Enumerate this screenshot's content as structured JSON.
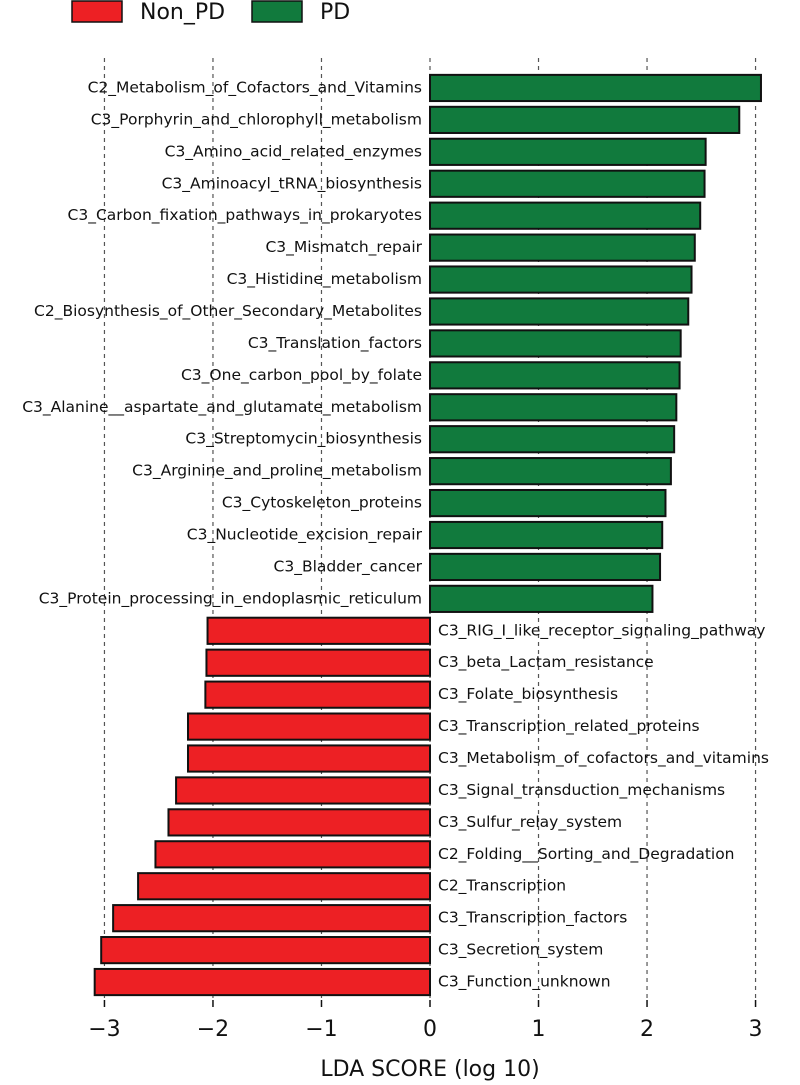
{
  "chart_data": {
    "type": "bar",
    "orientation": "horizontal",
    "categories": [
      "C2_Metabolism_of_Cofactors_and_Vitamins",
      "C3_Porphyrin_and_chlorophyll_metabolism",
      "C3_Amino_acid_related_enzymes",
      "C3_Aminoacyl_tRNA_biosynthesis",
      "C3_Carbon_fixation_pathways_in_prokaryotes",
      "C3_Mismatch_repair",
      "C3_Histidine_metabolism",
      "C2_Biosynthesis_of_Other_Secondary_Metabolites",
      "C3_Translation_factors",
      "C3_One_carbon_pool_by_folate",
      "C3_Alanine__aspartate_and_glutamate_metabolism",
      "C3_Streptomycin_biosynthesis",
      "C3_Arginine_and_proline_metabolism",
      "C3_Cytoskeleton_proteins",
      "C3_Nucleotide_excision_repair",
      "C3_Bladder_cancer",
      "C3_Protein_processing_in_endoplasmic_reticulum",
      "C3_RIG_I_like_receptor_signaling_pathway",
      "C3_beta_Lactam_resistance",
      "C3_Folate_biosynthesis",
      "C3_Transcription_related_proteins",
      "C3_Metabolism_of_cofactors_and_vitamins",
      "C3_Signal_transduction_mechanisms",
      "C3_Sulfur_relay_system",
      "C2_Folding__Sorting_and_Degradation",
      "C2_Transcription",
      "C3_Transcription_factors",
      "C3_Secretion_system",
      "C3_Function_unknown"
    ],
    "series": [
      {
        "name": "Non_PD",
        "color": "#ed2024",
        "values": [
          null,
          null,
          null,
          null,
          null,
          null,
          null,
          null,
          null,
          null,
          null,
          null,
          null,
          null,
          null,
          null,
          null,
          -2.05,
          -2.06,
          -2.07,
          -2.23,
          -2.23,
          -2.34,
          -2.41,
          -2.53,
          -2.69,
          -2.92,
          -3.03,
          -3.09
        ]
      },
      {
        "name": "PD",
        "color": "#117a3d",
        "values": [
          3.05,
          2.85,
          2.54,
          2.53,
          2.49,
          2.44,
          2.41,
          2.38,
          2.31,
          2.3,
          2.27,
          2.25,
          2.22,
          2.17,
          2.14,
          2.12,
          2.05,
          null,
          null,
          null,
          null,
          null,
          null,
          null,
          null,
          null,
          null,
          null,
          null
        ]
      }
    ],
    "x_label": "LDA SCORE (log 10)",
    "xlim": [
      -3.1,
      3.1
    ],
    "xticks": [
      {
        "value": -3,
        "label": "−3"
      },
      {
        "value": -2,
        "label": "−2"
      },
      {
        "value": -1,
        "label": "−1"
      },
      0,
      1,
      2,
      3
    ],
    "grid": true,
    "legend": "top"
  }
}
